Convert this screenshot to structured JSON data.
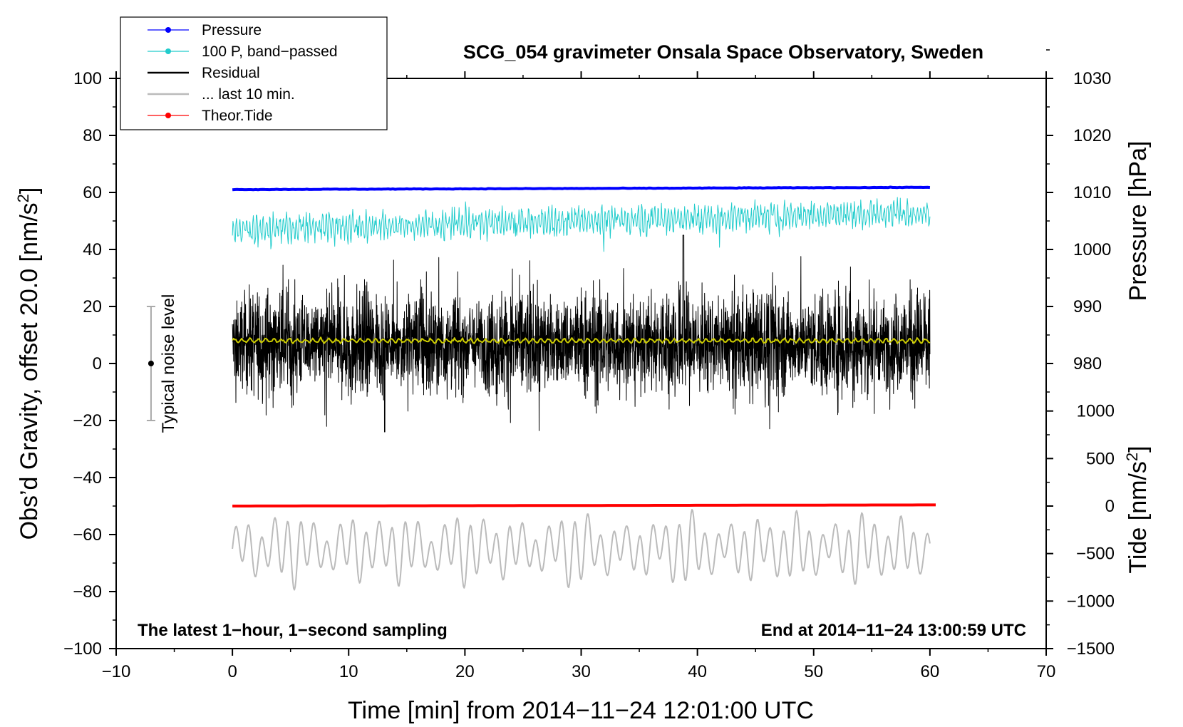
{
  "chart_data": {
    "type": "line",
    "title": "SCG_054 gravimeter Onsala Space Observatory, Sweden",
    "xlabel": "Time [min] from 2014−11−24 12:01:00 UTC",
    "ylabel": "Obs’d Gravity, offset 20.0 [nm/s²]",
    "ylabel_parts": {
      "base": "Obs’d Gravity, offset 20.0 [nm/s",
      "sup": "2",
      "end": "]"
    },
    "xlim": [
      -10,
      70
    ],
    "ylim": [
      -100,
      100
    ],
    "xticks": [
      -10,
      0,
      10,
      20,
      30,
      40,
      50,
      60,
      70
    ],
    "xtick_labels": [
      "−10",
      "0",
      "10",
      "20",
      "30",
      "40",
      "50",
      "60",
      "70"
    ],
    "yticks": [
      -100,
      -80,
      -60,
      -40,
      -20,
      0,
      20,
      40,
      60,
      80,
      100
    ],
    "ytick_labels": [
      "−100",
      "−80",
      "−60",
      "−40",
      "−20",
      "0",
      "20",
      "40",
      "60",
      "80",
      "100"
    ],
    "pressure_axis": {
      "label": "Pressure [hPa]",
      "ticks": [
        980,
        990,
        1000,
        1010,
        1020,
        1030
      ],
      "tick_labels": [
        "980",
        "990",
        "1000",
        "1010",
        "1020",
        "1030"
      ],
      "map_to_gravity": {
        "p0": 1000,
        "g0": 40,
        "g_per_hpa": 2.0
      }
    },
    "tide_axis": {
      "label_base": "Tide [nm/s",
      "label_sup": "2",
      "label_end": "]",
      "ticks": [
        -1500,
        -1000,
        -500,
        0,
        500,
        1000
      ],
      "tick_labels": [
        "−1500",
        "−1000",
        "−500",
        "0",
        "500",
        "1000"
      ],
      "map_to_gravity": {
        "t0": 0,
        "g0": -50,
        "g_per_unit": 0.033333
      }
    },
    "legend": {
      "position": "top-left",
      "entries": [
        {
          "label": "Pressure",
          "color": "#0000ff",
          "marker": true
        },
        {
          "label": "100 P, band−passed",
          "color": "#22cccc",
          "marker": true
        },
        {
          "label": "Residual",
          "color": "#000000",
          "marker": false
        },
        {
          "label": "... last 10 min.",
          "color": "#bbbbbb",
          "marker": false
        },
        {
          "label": "Theor.Tide",
          "color": "#ff0000",
          "marker": true
        }
      ]
    },
    "noise_bar": {
      "label": "Typical noise level",
      "x": -7,
      "center": 0,
      "low": -20,
      "high": 20
    },
    "annotations": {
      "bottom_left": "The latest 1−hour, 1−second sampling",
      "bottom_right": "End at 2014−11−24 13:00:59 UTC"
    },
    "series": [
      {
        "name": "Pressure",
        "color": "#0000ff",
        "x_range": [
          0,
          60
        ],
        "start": 61.0,
        "end": 61.8,
        "noise": 0.15,
        "gravity_units": true
      },
      {
        "name": "100 P, band−passed",
        "color": "#22cccc",
        "x_range": [
          0,
          60
        ],
        "mean": 47,
        "trend": 6,
        "amp": 4.5,
        "spikes": 8
      },
      {
        "name": "Residual",
        "color": "#000000",
        "x_range": [
          0,
          60
        ],
        "mean": 7,
        "amp": 9,
        "peak_max": 45,
        "peak_min": -24
      },
      {
        "name": "Residual smoothed",
        "color": "#cccc00",
        "x_range": [
          0,
          60
        ],
        "mean": 8,
        "amp": 1.0
      },
      {
        "name": "... last 10 min.",
        "color": "#bbbbbb",
        "x_range": [
          0,
          60
        ],
        "mean": -65,
        "amp": 12,
        "peak_max": -40,
        "peak_min": -88
      },
      {
        "name": "Theor.Tide",
        "color": "#ff0000",
        "x_range": [
          0,
          60.5
        ],
        "start": -50.0,
        "end": -49.6
      }
    ]
  }
}
